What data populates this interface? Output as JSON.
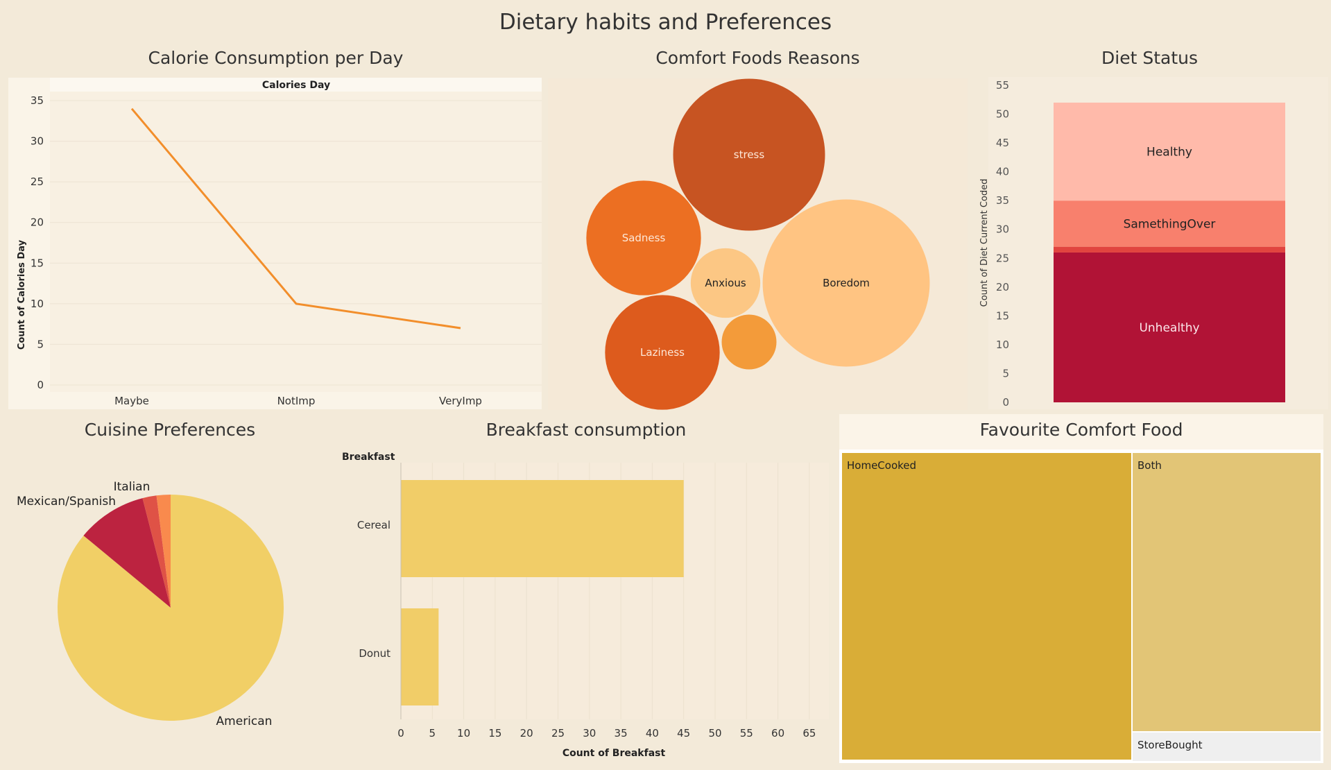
{
  "dashboard": {
    "title": "Dietary habits and Preferences"
  },
  "chart_data": [
    {
      "type": "line",
      "title": "Calorie Consumption per Day",
      "subtitle": "Calories Day",
      "ylabel": "Count of Calories Day",
      "categories": [
        "Maybe",
        "NotImp",
        "VeryImp"
      ],
      "values": [
        34,
        10,
        7
      ],
      "ylim": [
        0,
        35
      ],
      "yticks": [
        0,
        5,
        10,
        15,
        20,
        25,
        30,
        35
      ],
      "grid": true,
      "color": "#f28e2b"
    },
    {
      "type": "bubble",
      "title": "Comfort Foods Reasons",
      "bubbles": [
        {
          "label": "stress",
          "value": 100,
          "color": "#c75422"
        },
        {
          "label": "Boredom",
          "value": 121,
          "color": "#ffc482"
        },
        {
          "label": "Sadness",
          "value": 57,
          "color": "#ec6f22"
        },
        {
          "label": "Laziness",
          "value": 57,
          "color": "#dd5b1d"
        },
        {
          "label": "Anxious",
          "value": 21,
          "color": "#fcc784"
        },
        {
          "label": "",
          "value": 13,
          "color": "#f39b3a"
        }
      ]
    },
    {
      "type": "bar",
      "stacked": true,
      "title": "Diet Status",
      "ylabel": "Count of Diet Current Coded",
      "ylim": [
        0,
        55
      ],
      "yticks": [
        0,
        5,
        10,
        15,
        20,
        25,
        30,
        35,
        40,
        45,
        50,
        55
      ],
      "segments": [
        {
          "label": "Unhealthy",
          "value": 26,
          "color": "#b11336"
        },
        {
          "label": "",
          "value": 1,
          "color": "#e1443f"
        },
        {
          "label": "SamethingOver",
          "value": 8,
          "color": "#f8806d"
        },
        {
          "label": "Healthy",
          "value": 17,
          "color": "#ffbaaa"
        }
      ]
    },
    {
      "type": "pie",
      "title": "Cuisine Preferences",
      "slices": [
        {
          "label": "American",
          "value": 86,
          "color": "#f1cf66"
        },
        {
          "label": "Mexican/Spanish",
          "value": 10,
          "color": "#bc2340"
        },
        {
          "label": "Italian",
          "value": 2,
          "color": "#df5246"
        },
        {
          "label": "",
          "value": 2,
          "color": "#f98a4d"
        }
      ]
    },
    {
      "type": "bar",
      "orientation": "horizontal",
      "title": "Breakfast consumption",
      "ylabel": "Breakfast",
      "xlabel": "Count of Breakfast",
      "categories": [
        "Cereal",
        "Donut"
      ],
      "values": [
        45,
        6
      ],
      "xlim": [
        0,
        65
      ],
      "xticks": [
        0,
        5,
        10,
        15,
        20,
        25,
        30,
        35,
        40,
        45,
        50,
        55,
        60,
        65
      ],
      "grid": true,
      "color": "#f1cd68"
    },
    {
      "type": "treemap",
      "title": "Favourite Comfort Food",
      "cells": [
        {
          "label": "HomeCooked",
          "value": 49,
          "color": "#d9ad37"
        },
        {
          "label": "Both",
          "value": 29,
          "color": "#e2c576"
        },
        {
          "label": "StoreBought",
          "value": 3,
          "color": "#efefef"
        }
      ]
    }
  ]
}
